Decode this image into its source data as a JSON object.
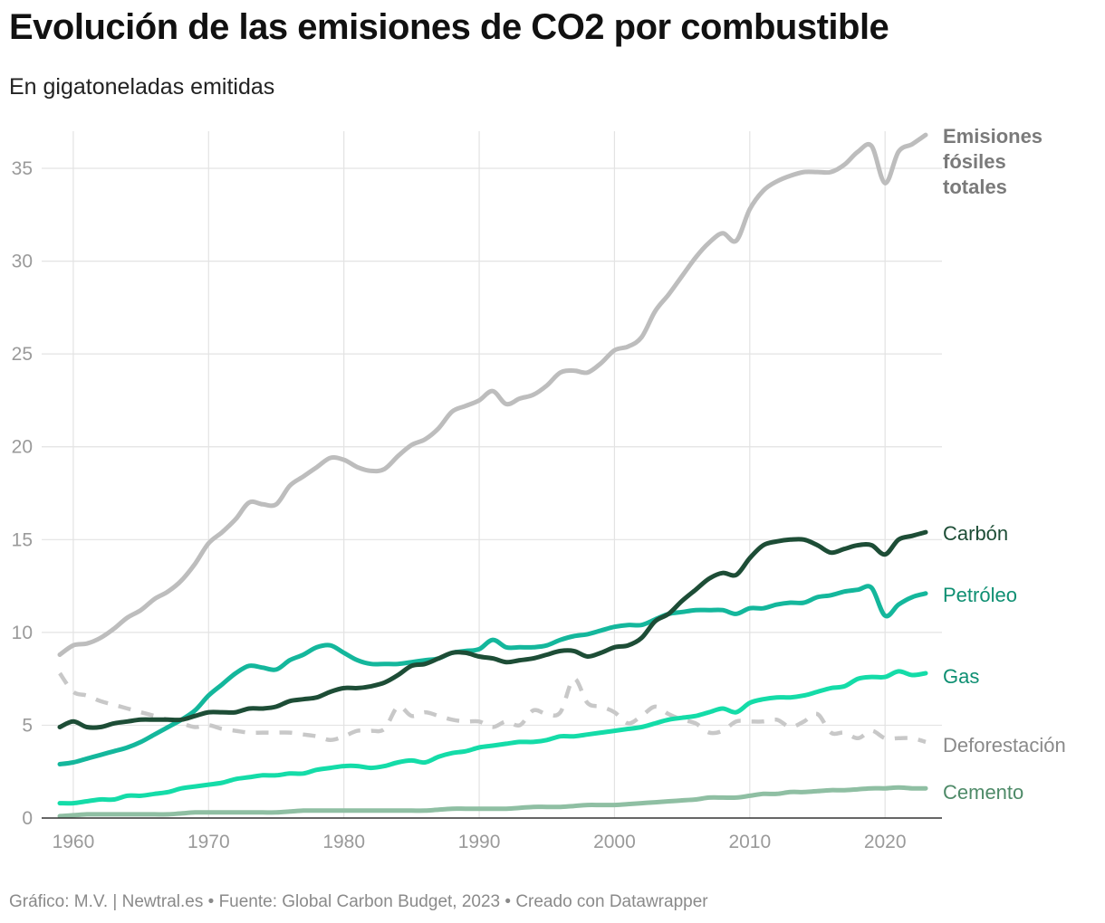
{
  "title": "Evolución de las emisiones de CO2 por combustible",
  "subtitle": "En gigatoneladas emitidas",
  "footer": "Gráfico: M.V. | Newtral.es • Fuente: Global Carbon Budget, 2023 • Creado con Datawrapper",
  "chart_data": {
    "type": "line",
    "title": "Evolución de las emisiones de CO2 por combustible",
    "subtitle": "En gigatoneladas emitidas",
    "xlabel": "",
    "ylabel": "",
    "xlim": [
      1959,
      2023
    ],
    "ylim": [
      0,
      37
    ],
    "x_ticks": [
      1960,
      1970,
      1980,
      1990,
      2000,
      2010,
      2020
    ],
    "y_ticks": [
      0,
      5,
      10,
      15,
      20,
      25,
      30,
      35
    ],
    "x": [
      1959,
      1960,
      1961,
      1962,
      1963,
      1964,
      1965,
      1966,
      1967,
      1968,
      1969,
      1970,
      1971,
      1972,
      1973,
      1974,
      1975,
      1976,
      1977,
      1978,
      1979,
      1980,
      1981,
      1982,
      1983,
      1984,
      1985,
      1986,
      1987,
      1988,
      1989,
      1990,
      1991,
      1992,
      1993,
      1994,
      1995,
      1996,
      1997,
      1998,
      1999,
      2000,
      2001,
      2002,
      2003,
      2004,
      2005,
      2006,
      2007,
      2008,
      2009,
      2010,
      2011,
      2012,
      2013,
      2014,
      2015,
      2016,
      2017,
      2018,
      2019,
      2020,
      2021,
      2022,
      2023
    ],
    "series": [
      {
        "name": "Emisiones fósiles totales",
        "label_lines": [
          "Emisiones",
          "fósiles",
          "totales"
        ],
        "color": "#bdbdbd",
        "label_color": "#7a7a7a",
        "dashed": false,
        "values": [
          8.8,
          9.3,
          9.4,
          9.7,
          10.2,
          10.8,
          11.2,
          11.8,
          12.2,
          12.8,
          13.7,
          14.8,
          15.4,
          16.1,
          17.0,
          16.9,
          16.9,
          17.9,
          18.4,
          18.9,
          19.4,
          19.3,
          18.9,
          18.7,
          18.8,
          19.5,
          20.1,
          20.4,
          21.0,
          21.9,
          22.2,
          22.5,
          23.0,
          22.3,
          22.6,
          22.8,
          23.3,
          24.0,
          24.1,
          24.0,
          24.5,
          25.2,
          25.4,
          25.9,
          27.3,
          28.2,
          29.2,
          30.2,
          31.0,
          31.5,
          31.1,
          32.8,
          33.8,
          34.3,
          34.6,
          34.8,
          34.8,
          34.8,
          35.2,
          35.9,
          36.2,
          34.2,
          35.9,
          36.3,
          36.8
        ]
      },
      {
        "name": "Carbón",
        "label_lines": [
          "Carbón"
        ],
        "color": "#1d4d36",
        "label_color": "#1d4d36",
        "dashed": false,
        "values": [
          4.9,
          5.2,
          4.9,
          4.9,
          5.1,
          5.2,
          5.3,
          5.3,
          5.3,
          5.3,
          5.5,
          5.7,
          5.7,
          5.7,
          5.9,
          5.9,
          6.0,
          6.3,
          6.4,
          6.5,
          6.8,
          7.0,
          7.0,
          7.1,
          7.3,
          7.7,
          8.2,
          8.3,
          8.6,
          8.9,
          8.9,
          8.7,
          8.6,
          8.4,
          8.5,
          8.6,
          8.8,
          9.0,
          9.0,
          8.7,
          8.9,
          9.2,
          9.3,
          9.7,
          10.6,
          11.0,
          11.7,
          12.3,
          12.9,
          13.2,
          13.1,
          14.0,
          14.7,
          14.9,
          15.0,
          15.0,
          14.7,
          14.3,
          14.5,
          14.7,
          14.7,
          14.2,
          15.0,
          15.2,
          15.4
        ]
      },
      {
        "name": "Petróleo",
        "label_lines": [
          "Petróleo"
        ],
        "color": "#14b79c",
        "label_color": "#0e8f72",
        "dashed": false,
        "values": [
          2.9,
          3.0,
          3.2,
          3.4,
          3.6,
          3.8,
          4.1,
          4.5,
          4.9,
          5.3,
          5.8,
          6.6,
          7.2,
          7.8,
          8.2,
          8.1,
          8.0,
          8.5,
          8.8,
          9.2,
          9.3,
          8.9,
          8.5,
          8.3,
          8.3,
          8.3,
          8.4,
          8.5,
          8.6,
          8.9,
          9.0,
          9.1,
          9.6,
          9.2,
          9.2,
          9.2,
          9.3,
          9.6,
          9.8,
          9.9,
          10.1,
          10.3,
          10.4,
          10.4,
          10.7,
          11.0,
          11.1,
          11.2,
          11.2,
          11.2,
          11.0,
          11.3,
          11.3,
          11.5,
          11.6,
          11.6,
          11.9,
          12.0,
          12.2,
          12.3,
          12.4,
          10.9,
          11.5,
          11.9,
          12.1
        ]
      },
      {
        "name": "Gas",
        "label_lines": [
          "Gas"
        ],
        "color": "#14dca8",
        "label_color": "#0e8f72",
        "dashed": false,
        "values": [
          0.8,
          0.8,
          0.9,
          1.0,
          1.0,
          1.2,
          1.2,
          1.3,
          1.4,
          1.6,
          1.7,
          1.8,
          1.9,
          2.1,
          2.2,
          2.3,
          2.3,
          2.4,
          2.4,
          2.6,
          2.7,
          2.8,
          2.8,
          2.7,
          2.8,
          3.0,
          3.1,
          3.0,
          3.3,
          3.5,
          3.6,
          3.8,
          3.9,
          4.0,
          4.1,
          4.1,
          4.2,
          4.4,
          4.4,
          4.5,
          4.6,
          4.7,
          4.8,
          4.9,
          5.1,
          5.3,
          5.4,
          5.5,
          5.7,
          5.9,
          5.7,
          6.2,
          6.4,
          6.5,
          6.5,
          6.6,
          6.8,
          7.0,
          7.1,
          7.5,
          7.6,
          7.6,
          7.9,
          7.7,
          7.8
        ]
      },
      {
        "name": "Deforestación",
        "label_lines": [
          "Deforestación"
        ],
        "color": "#c8c8c8",
        "label_color": "#8a8a8a",
        "dashed": true,
        "values": [
          7.8,
          6.8,
          6.6,
          6.3,
          6.1,
          5.9,
          5.7,
          5.5,
          5.3,
          5.1,
          4.9,
          5.0,
          4.8,
          4.7,
          4.6,
          4.6,
          4.6,
          4.6,
          4.5,
          4.4,
          4.2,
          4.4,
          4.7,
          4.7,
          4.8,
          6.0,
          5.5,
          5.7,
          5.5,
          5.3,
          5.2,
          5.2,
          4.9,
          5.2,
          5.0,
          5.8,
          5.6,
          5.7,
          7.5,
          6.2,
          6.0,
          5.7,
          5.1,
          5.5,
          6.0,
          5.6,
          5.3,
          5.1,
          4.6,
          4.7,
          5.2,
          5.2,
          5.2,
          5.3,
          4.9,
          5.2,
          5.6,
          4.6,
          4.6,
          4.3,
          4.7,
          4.3,
          4.3,
          4.3,
          4.1
        ]
      },
      {
        "name": "Cemento",
        "label_lines": [
          "Cemento"
        ],
        "color": "#8fbfa3",
        "label_color": "#4e8a68",
        "dashed": false,
        "values": [
          0.1,
          0.15,
          0.2,
          0.2,
          0.2,
          0.2,
          0.2,
          0.2,
          0.2,
          0.25,
          0.3,
          0.3,
          0.3,
          0.3,
          0.3,
          0.3,
          0.3,
          0.35,
          0.4,
          0.4,
          0.4,
          0.4,
          0.4,
          0.4,
          0.4,
          0.4,
          0.4,
          0.4,
          0.45,
          0.5,
          0.5,
          0.5,
          0.5,
          0.5,
          0.55,
          0.6,
          0.6,
          0.6,
          0.65,
          0.7,
          0.7,
          0.7,
          0.75,
          0.8,
          0.85,
          0.9,
          0.95,
          1.0,
          1.1,
          1.1,
          1.1,
          1.2,
          1.3,
          1.3,
          1.4,
          1.4,
          1.45,
          1.5,
          1.5,
          1.55,
          1.6,
          1.6,
          1.65,
          1.6,
          1.6
        ]
      }
    ]
  }
}
